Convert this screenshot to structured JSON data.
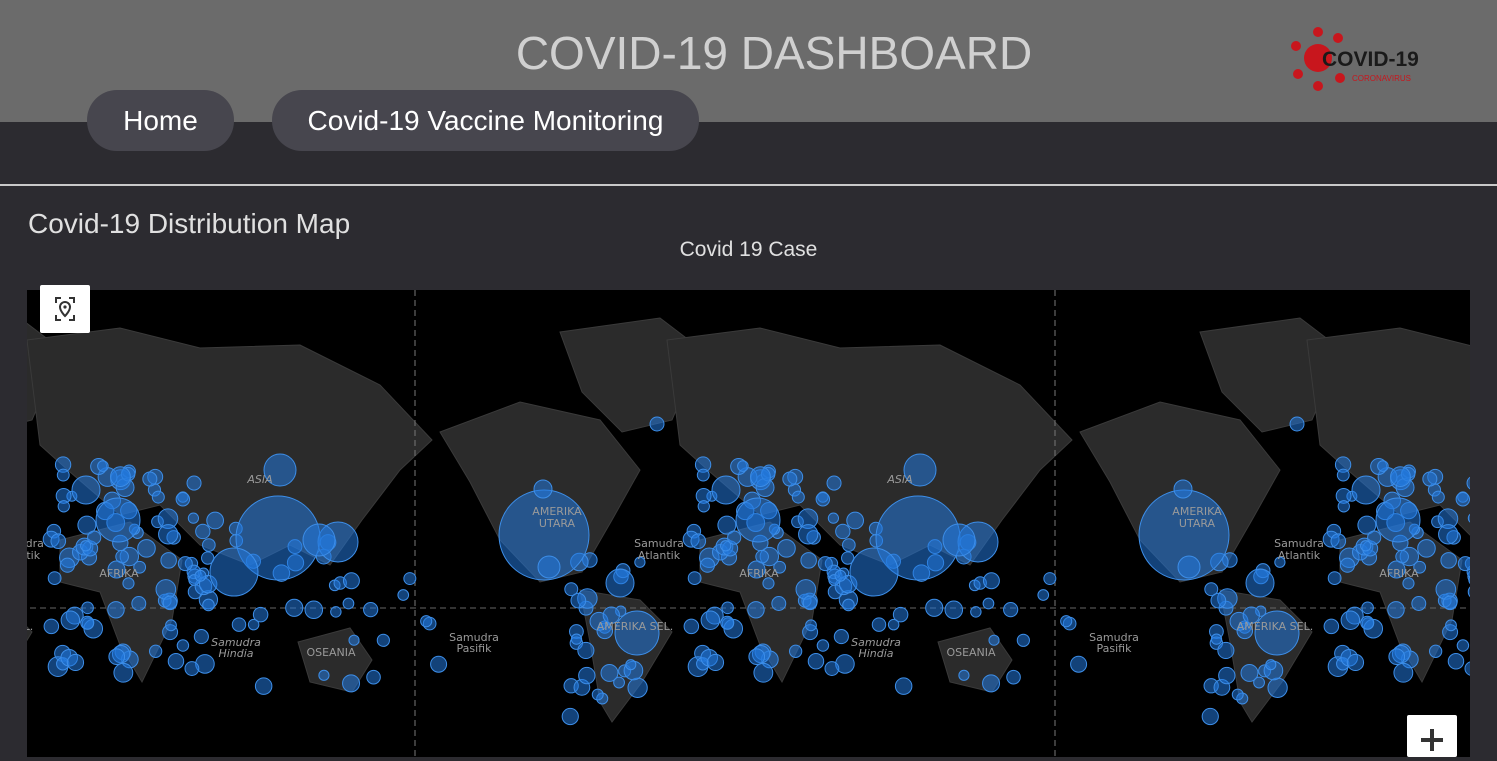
{
  "header": {
    "title": "COVID-19 DASHBOARD",
    "logo": {
      "title": "COVID-19",
      "subtitle": "CORONAVIRUS"
    }
  },
  "nav": [
    "Home",
    "Covid-19 Vaccine Monitoring"
  ],
  "section": {
    "title": "Covid-19 Distribution Map",
    "map": {
      "title": "Covid 19 Case",
      "labels": [
        [
          "ASIA"
        ],
        [
          "AMERIKA",
          "UTARA"
        ],
        [
          "Samudra",
          "Atlantik"
        ],
        [
          "AFRIKA"
        ],
        [
          "Samudra",
          "Hindia"
        ],
        [
          "OSEANIA"
        ],
        [
          "Samudra",
          "Pasifik"
        ],
        [
          "AMERIKA SEL."
        ]
      ]
    }
  }
}
